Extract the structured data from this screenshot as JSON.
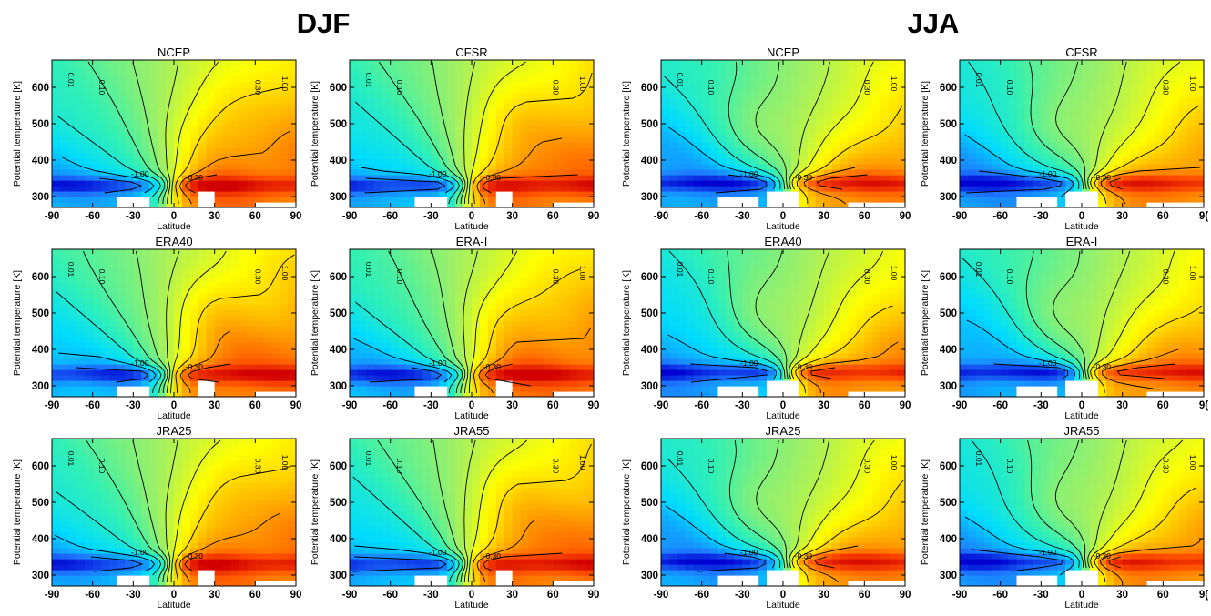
{
  "chart_data": {
    "type": "heatmap",
    "seasons": [
      {
        "label": "DJF",
        "panels": [
          "NCEP",
          "CFSR",
          "ERA40",
          "ERA-I",
          "JRA25",
          "JRA55"
        ]
      },
      {
        "label": "JJA",
        "panels": [
          "NCEP",
          "CFSR",
          "ERA40",
          "ERA-I",
          "JRA25",
          "JRA55"
        ]
      }
    ],
    "xlabel": "Latitude",
    "ylabel": "Potential temperature [K]",
    "xticks": [
      "-90",
      "-60",
      "-30",
      "0",
      "30",
      "60",
      "90"
    ],
    "xticks_clipped": [
      "-90",
      "-60",
      "-30",
      "0",
      "30",
      "60",
      "9("
    ],
    "yticks": [
      "300",
      "400",
      "500",
      "600"
    ],
    "xlim": [
      -90,
      90
    ],
    "ylim": [
      270,
      675
    ],
    "contour_labels": [
      "0.01",
      "0.10",
      "0.30",
      "1.00",
      "-1.00",
      "-0.30",
      "-0.10",
      "-0.01"
    ],
    "colormap": [
      "#0000d0",
      "#1e78ff",
      "#00dcff",
      "#32f0b4",
      "#a0f064",
      "#ffff00",
      "#ffaa00",
      "#ff5000",
      "#d20000"
    ],
    "missing_color": "#ffffff"
  }
}
